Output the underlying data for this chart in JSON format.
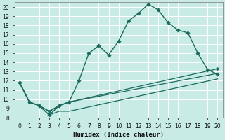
{
  "xlabel": "Humidex (Indice chaleur)",
  "xlim": [
    -0.5,
    20.5
  ],
  "ylim": [
    8,
    20.5
  ],
  "xticks": [
    0,
    1,
    2,
    3,
    4,
    5,
    6,
    7,
    8,
    9,
    10,
    11,
    12,
    13,
    14,
    15,
    16,
    17,
    18,
    19,
    20
  ],
  "yticks": [
    8,
    9,
    10,
    11,
    12,
    13,
    14,
    15,
    16,
    17,
    18,
    19,
    20
  ],
  "bg_color": "#c8ebe5",
  "grid_color": "#b0ddd6",
  "line_color": "#1a6b5e",
  "series": [
    {
      "x": [
        0,
        1,
        2,
        3,
        4,
        5,
        6,
        7,
        8,
        9,
        10,
        11,
        12,
        13,
        14,
        15,
        16,
        17,
        18,
        19,
        20
      ],
      "y": [
        11.8,
        9.7,
        9.3,
        8.3,
        9.3,
        9.7,
        12.0,
        15.0,
        15.8,
        14.8,
        16.3,
        18.5,
        19.3,
        20.3,
        19.7,
        18.3,
        17.5,
        17.2,
        15.0,
        13.2,
        12.7
      ],
      "marker": true
    },
    {
      "x": [
        0,
        1,
        2,
        3,
        4,
        5,
        20
      ],
      "y": [
        11.8,
        9.7,
        9.3,
        8.7,
        9.3,
        9.7,
        13.3
      ],
      "marker": true
    },
    {
      "x": [
        0,
        1,
        2,
        3,
        4,
        5,
        20
      ],
      "y": [
        11.8,
        9.7,
        9.3,
        8.7,
        9.3,
        9.7,
        12.8
      ],
      "marker": false
    },
    {
      "x": [
        0,
        1,
        2,
        3,
        4,
        5,
        20
      ],
      "y": [
        11.8,
        9.7,
        9.3,
        8.3,
        8.7,
        8.7,
        12.2
      ],
      "marker": false
    }
  ]
}
